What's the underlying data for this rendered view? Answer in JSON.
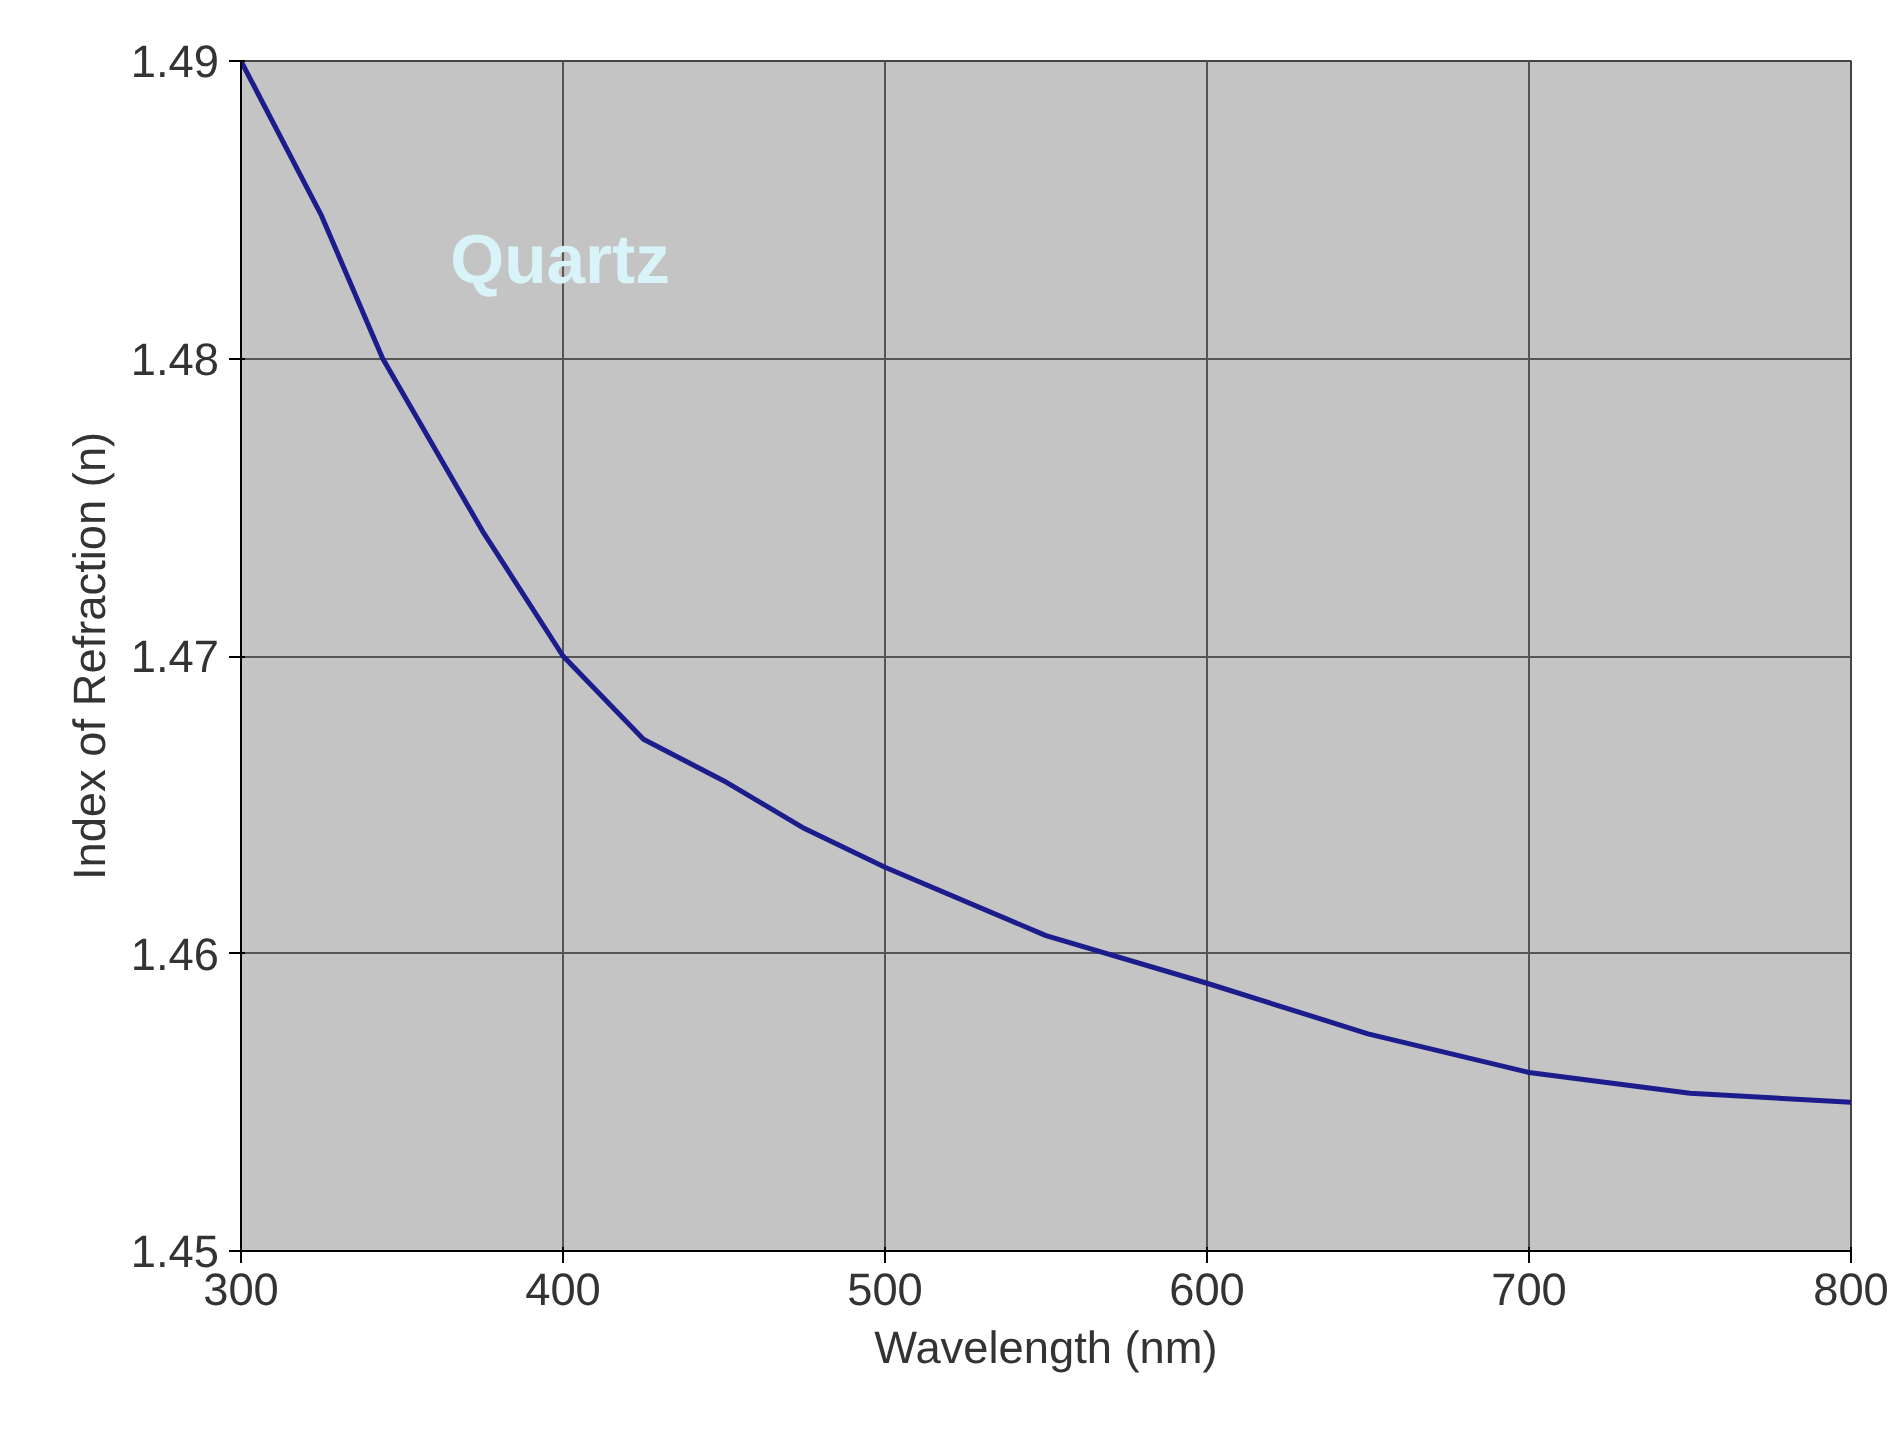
{
  "chart_data": {
    "type": "line",
    "xlabel": "Wavelength (nm)",
    "ylabel": "Index of Refraction (n)",
    "x": [
      300,
      325,
      344,
      375,
      400,
      425,
      450,
      475,
      500,
      550,
      600,
      650,
      700,
      750,
      800
    ],
    "series": [
      {
        "name": "Quartz",
        "color": "#1c1c8c",
        "values": [
          1.49,
          1.4848,
          1.48,
          1.4742,
          1.47,
          1.4672,
          1.4658,
          1.4642,
          1.4629,
          1.4606,
          1.459,
          1.4573,
          1.456,
          1.4553,
          1.455
        ]
      }
    ],
    "xlim": [
      300,
      800
    ],
    "ylim": [
      1.45,
      1.49
    ],
    "xticks": [
      300,
      400,
      500,
      600,
      700,
      800
    ],
    "yticks": [
      {
        "value": 1.45,
        "label": "1.45"
      },
      {
        "value": 1.46,
        "label": "1.46"
      },
      {
        "value": 1.47,
        "label": "1.47"
      },
      {
        "value": 1.48,
        "label": "1.48"
      },
      {
        "value": 1.49,
        "label": "1.49"
      }
    ],
    "grid": true,
    "marker": "none",
    "line_style": "solid"
  }
}
